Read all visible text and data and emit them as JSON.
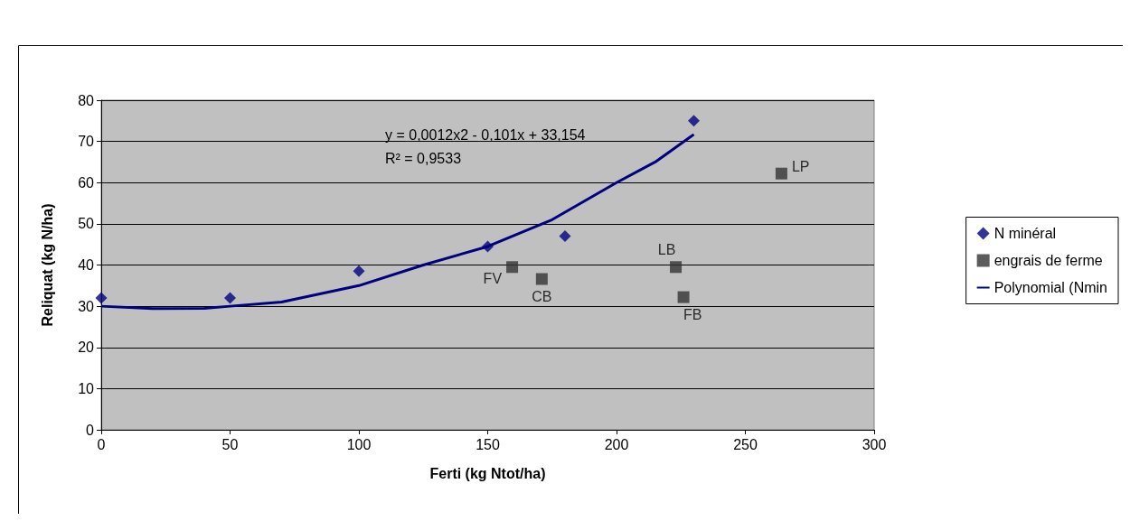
{
  "chart_data": {
    "type": "scatter",
    "xlabel": "Ferti (kg Ntot/ha)",
    "ylabel": "Reliquat (kg N/ha)",
    "xlim": [
      0,
      300
    ],
    "ylim": [
      0,
      80
    ],
    "xticks": [
      0,
      50,
      100,
      150,
      200,
      250,
      300
    ],
    "yticks": [
      0,
      10,
      20,
      30,
      40,
      50,
      60,
      70,
      80
    ],
    "grid": "y",
    "legend": "right",
    "annotations": [
      "y = 0,0012x2 - 0,101x + 33,154",
      "R² = 0,9533"
    ],
    "series": [
      {
        "name": "N minéral",
        "marker": "diamond",
        "color": "#000080",
        "x": [
          0,
          50,
          100,
          150,
          180,
          230
        ],
        "values": [
          32,
          32,
          38.5,
          44.5,
          47,
          75
        ]
      },
      {
        "name": "engrais de ferme",
        "marker": "square",
        "color": "#333333",
        "x": [
          159.5,
          171,
          223,
          226,
          264
        ],
        "values": [
          39.5,
          36.6,
          39.5,
          32.2,
          62.2
        ],
        "value_labels": [
          "FV",
          "CB",
          "LB",
          "FB",
          "LP"
        ]
      },
      {
        "name": "Polynomial (Nmin",
        "type": "line",
        "marker": "none",
        "color": "#000080",
        "x": [
          0,
          20,
          40,
          50,
          70,
          100,
          125,
          150,
          175,
          200,
          215,
          230
        ],
        "values": [
          30,
          29.4,
          29.5,
          30,
          31,
          35,
          40,
          44.5,
          51,
          60,
          65,
          71.7
        ]
      }
    ]
  }
}
